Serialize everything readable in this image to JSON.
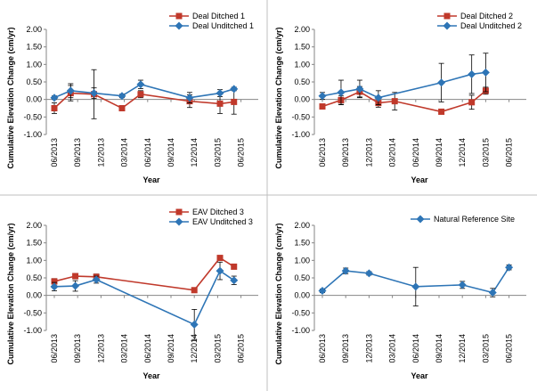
{
  "chart_data": [
    {
      "type": "line",
      "xlabel": "Year",
      "ylabel": "Cumulative Elevation Change (cm/yr)",
      "ylim": [
        -1.0,
        2.0
      ],
      "yticks": [
        "2.00",
        "1.50",
        "1.00",
        "0.50",
        "0.00",
        "-0.50",
        "-1.00"
      ],
      "categories": [
        "06/2013",
        "09/2013",
        "12/2013",
        "03/2014",
        "06/2014",
        "09/2014",
        "12/2014",
        "03/2015",
        "06/2015"
      ],
      "legend_position": "top-right",
      "series": [
        {
          "name": "Deal Ditched 1",
          "color": "#c0392b",
          "marker": "square",
          "points": [
            {
              "x": 0.0,
              "y": -0.25,
              "err": 0.15
            },
            {
              "x": 0.7,
              "y": 0.18,
              "err": 0.22
            },
            {
              "x": 1.7,
              "y": 0.15,
              "err": 0.7
            },
            {
              "x": 2.9,
              "y": -0.25,
              "err": 0.05
            },
            {
              "x": 3.7,
              "y": 0.15,
              "err": 0.1
            },
            {
              "x": 5.8,
              "y": -0.05,
              "err": 0.18
            },
            {
              "x": 7.1,
              "y": -0.12,
              "err": 0.28
            },
            {
              "x": 7.7,
              "y": -0.07,
              "err": 0.35
            }
          ]
        },
        {
          "name": "Deal Unditched 1",
          "color": "#2e75b6",
          "marker": "diamond",
          "points": [
            {
              "x": 0.0,
              "y": 0.05,
              "err": 0.05
            },
            {
              "x": 0.7,
              "y": 0.25,
              "err": 0.2
            },
            {
              "x": 1.7,
              "y": 0.18,
              "err": 0.15
            },
            {
              "x": 2.9,
              "y": 0.1,
              "err": 0.05
            },
            {
              "x": 3.7,
              "y": 0.43,
              "err": 0.12
            },
            {
              "x": 5.8,
              "y": 0.05,
              "err": 0.15
            },
            {
              "x": 7.1,
              "y": 0.18,
              "err": 0.1
            },
            {
              "x": 7.7,
              "y": 0.3,
              "err": 0.05
            }
          ]
        }
      ]
    },
    {
      "type": "line",
      "xlabel": "Year",
      "ylabel": "Cumulative Elevation Change (cm/yr)",
      "ylim": [
        -1.0,
        2.0
      ],
      "yticks": [
        "2.00",
        "1.50",
        "1.00",
        "0.50",
        "0.00",
        "-0.50",
        "-1.00"
      ],
      "categories": [
        "06/2013",
        "09/2013",
        "12/2013",
        "03/2014",
        "06/2014",
        "09/2014",
        "12/2014",
        "03/2015",
        "06/2015"
      ],
      "legend_position": "top-right",
      "series": [
        {
          "name": "Deal Ditched 2",
          "color": "#c0392b",
          "marker": "square",
          "points": [
            {
              "x": 0.0,
              "y": -0.2,
              "err": 0.07
            },
            {
              "x": 0.8,
              "y": -0.02,
              "err": 0.12
            },
            {
              "x": 1.6,
              "y": 0.22,
              "err": 0.15
            },
            {
              "x": 2.4,
              "y": -0.1,
              "err": 0.12
            },
            {
              "x": 3.1,
              "y": -0.05,
              "err": 0.25
            },
            {
              "x": 5.1,
              "y": -0.35,
              "err": 0.05
            },
            {
              "x": 6.4,
              "y": -0.08,
              "err": 0.2
            },
            {
              "x": 7.0,
              "y": 0.25,
              "err": 0.1
            }
          ]
        },
        {
          "name": "Deal Unditched 2",
          "color": "#2e75b6",
          "marker": "diamond",
          "points": [
            {
              "x": 0.0,
              "y": 0.1,
              "err": 0.1
            },
            {
              "x": 0.8,
              "y": 0.2,
              "err": 0.35
            },
            {
              "x": 1.6,
              "y": 0.3,
              "err": 0.25
            },
            {
              "x": 2.4,
              "y": 0.05,
              "err": 0.2
            },
            {
              "x": 5.1,
              "y": 0.48,
              "err": 0.55
            },
            {
              "x": 6.4,
              "y": 0.72,
              "err": 0.55
            },
            {
              "x": 7.0,
              "y": 0.77,
              "err": 0.55
            }
          ]
        }
      ]
    },
    {
      "type": "line",
      "xlabel": "Year",
      "ylabel": "Cumulative Elevation Change (cm/yr)",
      "ylim": [
        -1.0,
        2.0
      ],
      "yticks": [
        "2.00",
        "1.50",
        "1.00",
        "0.50",
        "0.00",
        "-0.50",
        "-1.00"
      ],
      "categories": [
        "06/2013",
        "09/2013",
        "12/2013",
        "03/2014",
        "06/2014",
        "09/2014",
        "12/2014",
        "03/2015",
        "06/2015"
      ],
      "legend_position": "top-right",
      "series": [
        {
          "name": "EAV Ditched 3",
          "color": "#c0392b",
          "marker": "square",
          "points": [
            {
              "x": 0.0,
              "y": 0.4,
              "err": 0.08
            },
            {
              "x": 0.9,
              "y": 0.55,
              "err": 0.08
            },
            {
              "x": 1.8,
              "y": 0.53,
              "err": 0.08
            },
            {
              "x": 6.0,
              "y": 0.15,
              "err": 0.05
            },
            {
              "x": 7.1,
              "y": 1.07,
              "err": 0.05
            },
            {
              "x": 7.7,
              "y": 0.82,
              "err": 0.05
            }
          ]
        },
        {
          "name": "EAV Unditched 3",
          "color": "#2e75b6",
          "marker": "diamond",
          "points": [
            {
              "x": 0.0,
              "y": 0.25,
              "err": 0.12
            },
            {
              "x": 0.9,
              "y": 0.27,
              "err": 0.15
            },
            {
              "x": 1.8,
              "y": 0.45,
              "err": 0.1
            },
            {
              "x": 6.0,
              "y": -0.83,
              "err": 0.43
            },
            {
              "x": 7.1,
              "y": 0.7,
              "err": 0.25
            },
            {
              "x": 7.7,
              "y": 0.43,
              "err": 0.12
            }
          ]
        }
      ]
    },
    {
      "type": "line",
      "xlabel": "Year",
      "ylabel": "Cumulative Elevation Change (cm/yr)",
      "ylim": [
        -1.0,
        2.0
      ],
      "yticks": [
        "2.00",
        "1.50",
        "1.00",
        "0.50",
        "0.00",
        "-0.50",
        "-1.00"
      ],
      "categories": [
        "06/2013",
        "09/2013",
        "12/2013",
        "03/2014",
        "06/2014",
        "09/2014",
        "12/2014",
        "03/2015",
        "06/2015"
      ],
      "legend_position": "top-right",
      "series": [
        {
          "name": "Natural Reference Site",
          "color": "#2e75b6",
          "marker": "diamond",
          "points": [
            {
              "x": 0.0,
              "y": 0.13,
              "err": 0.05
            },
            {
              "x": 1.0,
              "y": 0.7,
              "err": 0.08
            },
            {
              "x": 2.0,
              "y": 0.63,
              "err": 0.05
            },
            {
              "x": 4.0,
              "y": 0.25,
              "err": 0.55
            },
            {
              "x": 6.0,
              "y": 0.3,
              "err": 0.1
            },
            {
              "x": 7.3,
              "y": 0.08,
              "err": 0.12
            },
            {
              "x": 8.0,
              "y": 0.8,
              "err": 0.07
            }
          ]
        }
      ]
    }
  ]
}
